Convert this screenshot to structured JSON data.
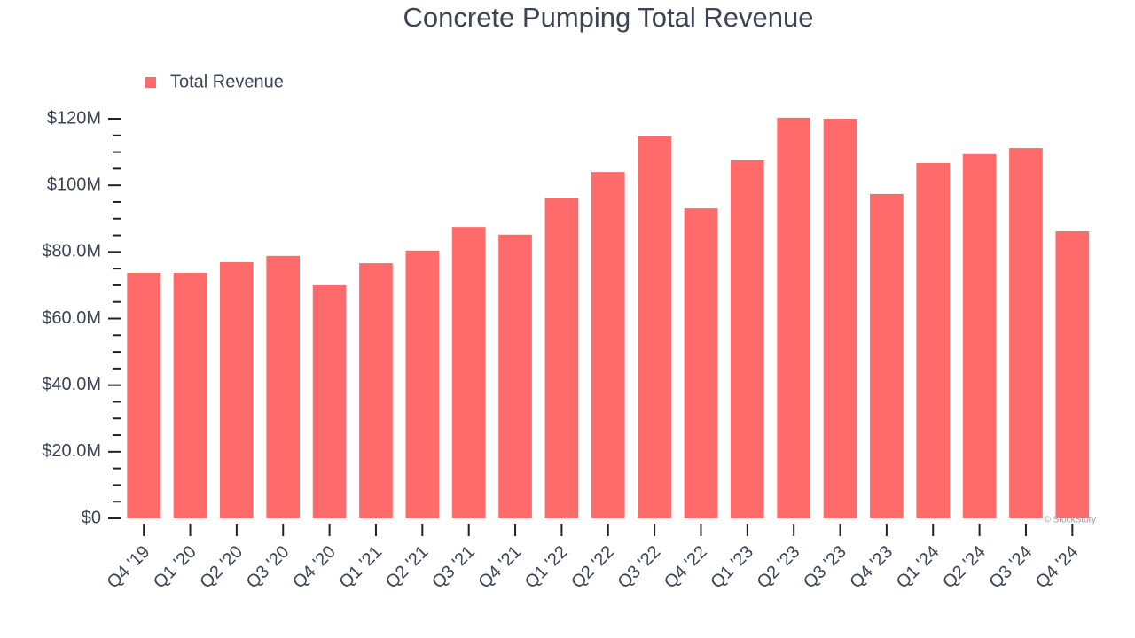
{
  "chart_data": {
    "type": "bar",
    "title": "Concrete Pumping Total Revenue",
    "categories": [
      "Q4 '19",
      "Q1 '20",
      "Q2 '20",
      "Q3 '20",
      "Q4 '20",
      "Q1 '21",
      "Q2 '21",
      "Q3 '21",
      "Q4 '21",
      "Q1 '22",
      "Q2 '22",
      "Q3 '22",
      "Q4 '22",
      "Q1 '23",
      "Q2 '23",
      "Q3 '23",
      "Q4 '23",
      "Q1 '24",
      "Q2 '24",
      "Q3 '24",
      "Q4 '24"
    ],
    "series": [
      {
        "name": "Total Revenue",
        "color": "#ff6b6b",
        "values": [
          73.7,
          73.7,
          76.9,
          78.8,
          70.0,
          76.6,
          80.4,
          87.5,
          85.2,
          96.1,
          104.0,
          114.7,
          93.1,
          107.5,
          120.3,
          120.0,
          97.4,
          106.7,
          109.4,
          111.2,
          86.2
        ]
      }
    ],
    "ylim": [
      0,
      120
    ],
    "yticks": [
      {
        "value": 0,
        "label": "$0"
      },
      {
        "value": 20,
        "label": "$20.0M"
      },
      {
        "value": 40,
        "label": "$40.0M"
      },
      {
        "value": 60,
        "label": "$60.0M"
      },
      {
        "value": 80,
        "label": "$80.0M"
      },
      {
        "value": 100,
        "label": "$100M"
      },
      {
        "value": 120,
        "label": "$120M"
      }
    ],
    "grid": false,
    "legend": "top-left",
    "credit": "© StockStory"
  }
}
